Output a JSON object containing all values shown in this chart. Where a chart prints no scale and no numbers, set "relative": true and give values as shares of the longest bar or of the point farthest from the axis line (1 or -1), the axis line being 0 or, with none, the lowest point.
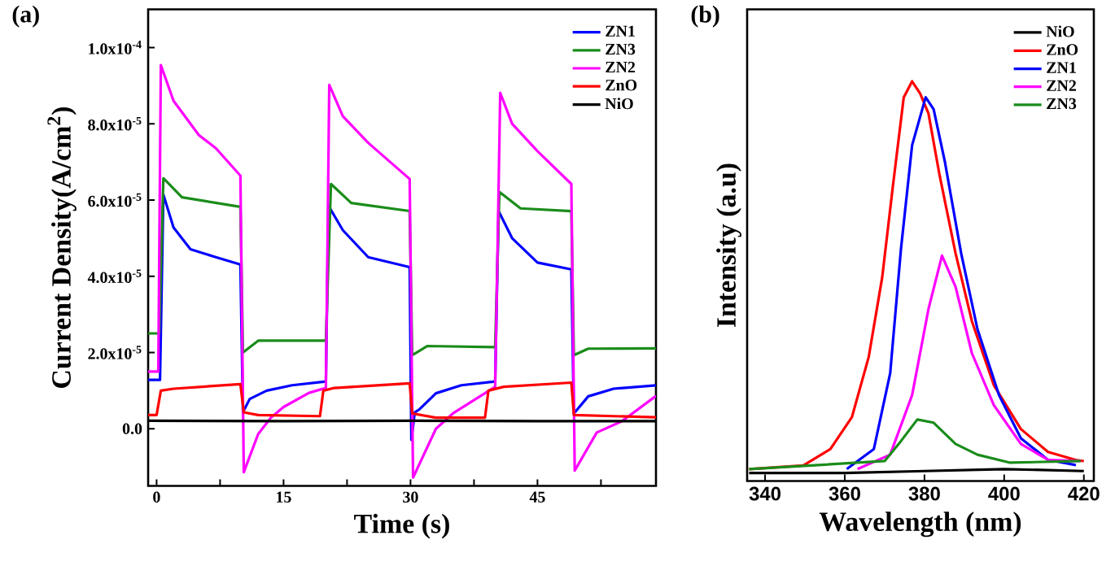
{
  "chart_data": [
    {
      "type": "line",
      "title": "(a)",
      "xlabel": "Time (s)",
      "ylabel": "Current Density(A/cm$^{2}$)",
      "xlim": [
        -1,
        59
      ],
      "ylim": [
        -1.5e-05,
        0.00011
      ],
      "xticks": [
        0,
        15,
        30,
        45,
        {
          "value": 7.5,
          "label": null
        },
        {
          "value": 22.5,
          "label": null
        },
        {
          "value": 37.5,
          "label": null
        },
        {
          "value": 52.5,
          "label": null
        }
      ],
      "yticks": [
        {
          "value": 0,
          "label": "0.0"
        },
        {
          "value": 2e-05,
          "label": "2.0x10$^{-5}$"
        },
        {
          "value": 4e-05,
          "label": "4.0x10$^{-5}$"
        },
        {
          "value": 6e-05,
          "label": "6.0x10$^{-5}$"
        },
        {
          "value": 8e-05,
          "label": "8.0x10$^{-5}$"
        },
        {
          "value": 0.0001,
          "label": "1.0x10$^{-4}$"
        }
      ],
      "legend": "top right",
      "marker": "none",
      "line_style": "solid",
      "series": [
        {
          "name": "ZN1",
          "color": "#0000ff",
          "x": [
            -1,
            0.4,
            0.8,
            2,
            4,
            7,
            9.9,
            10.2,
            11,
            13,
            16,
            20,
            20.3,
            22,
            25,
            29.9,
            30.1,
            30.5,
            31,
            33,
            36,
            40,
            40.4,
            42,
            45,
            49,
            49.3,
            51,
            54,
            59
          ],
          "values": [
            1.28e-05,
            1.28e-05,
            6.14e-05,
            5.28e-05,
            4.71e-05,
            4.5e-05,
            4.31e-05,
            4.3e-06,
            7.8e-06,
            1e-05,
            1.14e-05,
            1.24e-05,
            5.85e-05,
            5.21e-05,
            4.5e-05,
            4.24e-05,
            -2.9e-06,
            4.3e-06,
            5e-06,
            9.3e-06,
            1.14e-05,
            1.24e-05,
            5.71e-05,
            5e-05,
            4.36e-05,
            4.18e-05,
            4e-06,
            8.5e-06,
            1.05e-05,
            1.14e-05
          ]
        },
        {
          "name": "ZN3",
          "color": "#1a8c1a",
          "x": [
            -1,
            0.3,
            0.8,
            3,
            9.9,
            10.2,
            12,
            20,
            20.6,
            23,
            29.9,
            30.2,
            32,
            40,
            40.5,
            43,
            49,
            49.3,
            51,
            59
          ],
          "values": [
            2.5e-05,
            2.5e-05,
            6.57e-05,
            6.07e-05,
            5.82e-05,
            2e-05,
            2.31e-05,
            2.31e-05,
            6.42e-05,
            5.92e-05,
            5.71e-05,
            1.93e-05,
            2.17e-05,
            2.14e-05,
            6.21e-05,
            5.78e-05,
            5.71e-05,
            1.93e-05,
            2.1e-05,
            2.11e-05
          ]
        },
        {
          "name": "ZN2",
          "color": "#ff00ff",
          "x": [
            -1,
            0.2,
            0.5,
            2,
            5,
            7,
            9.9,
            10.3,
            12,
            13.5,
            15,
            18,
            20,
            20.4,
            22,
            25,
            29.9,
            30.3,
            33,
            35,
            40,
            40.6,
            42,
            45,
            49,
            49.4,
            52,
            55,
            59
          ],
          "values": [
            1.5e-05,
            1.5e-05,
            9.54e-05,
            8.6e-05,
            7.7e-05,
            7.36e-05,
            6.64e-05,
            -1.14e-05,
            -1.4e-06,
            2.9e-06,
            5.7e-06,
            9.4e-06,
            1.07e-05,
            9.02e-05,
            8.2e-05,
            7.5e-05,
            6.55e-05,
            -1.28e-05,
            0.0,
            4e-06,
            1.1e-05,
            8.81e-05,
            8e-05,
            7.28e-05,
            6.42e-05,
            -1.1e-05,
            -1e-06,
            2e-06,
            8.6e-06
          ]
        },
        {
          "name": "ZnO",
          "color": "#ff0000",
          "x": [
            -1,
            0,
            0.5,
            2,
            9.9,
            10.3,
            12,
            19.3,
            19.7,
            21,
            29.9,
            30.2,
            33,
            38.8,
            39.2,
            41,
            49,
            49.3,
            59
          ],
          "values": [
            3.6e-06,
            3.6e-06,
            1e-05,
            1.05e-05,
            1.17e-05,
            4.3e-06,
            3.6e-06,
            3.3e-06,
            1e-05,
            1.07e-05,
            1.19e-05,
            4e-06,
            2.9e-06,
            2.9e-06,
            1e-05,
            1.1e-05,
            1.21e-05,
            3.6e-06,
            3e-06
          ]
        },
        {
          "name": "NiO",
          "color": "#000000",
          "x": [
            -1,
            15,
            30,
            45,
            59
          ],
          "values": [
            2.1e-06,
            2e-06,
            2.1e-06,
            2e-06,
            2e-06
          ]
        }
      ]
    },
    {
      "type": "line",
      "title": "(b)",
      "xlabel": "Wavelength (nm)",
      "ylabel": "Intensity (a.u)",
      "relative": true,
      "tick_labels": "x",
      "xlim": [
        335.5,
        422.5
      ],
      "xticks": [
        340,
        360,
        380,
        400,
        420
      ],
      "legend": "top right",
      "marker": "none",
      "line_style": "solid",
      "series": [
        {
          "name": "NiO",
          "color": "#000000",
          "x": [
            336,
            360,
            380,
            400,
            420
          ],
          "values": [
            0.02,
            0.02,
            0.025,
            0.03,
            0.025
          ]
        },
        {
          "name": "ZnO",
          "color": "#ff0000",
          "x": [
            336,
            349.6,
            356.4,
            361.8,
            366,
            369.4,
            372.1,
            374.8,
            376.9,
            378.9,
            381,
            383.7,
            387.8,
            391.9,
            397.4,
            404.2,
            411,
            417.9,
            420
          ],
          "values": [
            0.03,
            0.039,
            0.08,
            0.16,
            0.31,
            0.51,
            0.74,
            0.96,
            1.0,
            0.97,
            0.92,
            0.77,
            0.57,
            0.4,
            0.24,
            0.13,
            0.073,
            0.053,
            0.05
          ]
        },
        {
          "name": "ZN1",
          "color": "#0000ff",
          "x": [
            360.5,
            367.3,
            371.4,
            374.1,
            376.9,
            380.3,
            382.3,
            385.1,
            389.2,
            393.3,
            398.7,
            404.2,
            411,
            418
          ],
          "values": [
            0.03,
            0.08,
            0.27,
            0.58,
            0.84,
            0.96,
            0.93,
            0.8,
            0.57,
            0.38,
            0.215,
            0.107,
            0.053,
            0.04
          ]
        },
        {
          "name": "ZN2",
          "color": "#ff00ff",
          "x": [
            363.2,
            371.4,
            376.9,
            381,
            384.4,
            387.8,
            391.9,
            397.4,
            404.2,
            411,
            419.2
          ],
          "values": [
            0.03,
            0.066,
            0.215,
            0.43,
            0.564,
            0.486,
            0.32,
            0.19,
            0.093,
            0.053,
            0.05
          ]
        },
        {
          "name": "ZN3",
          "color": "#1a8c1a",
          "x": [
            336,
            370,
            374.1,
            378.2,
            382.3,
            387.8,
            393.3,
            401.5,
            419.2
          ],
          "values": [
            0.03,
            0.05,
            0.1,
            0.154,
            0.146,
            0.093,
            0.066,
            0.046,
            0.05
          ]
        }
      ]
    }
  ]
}
